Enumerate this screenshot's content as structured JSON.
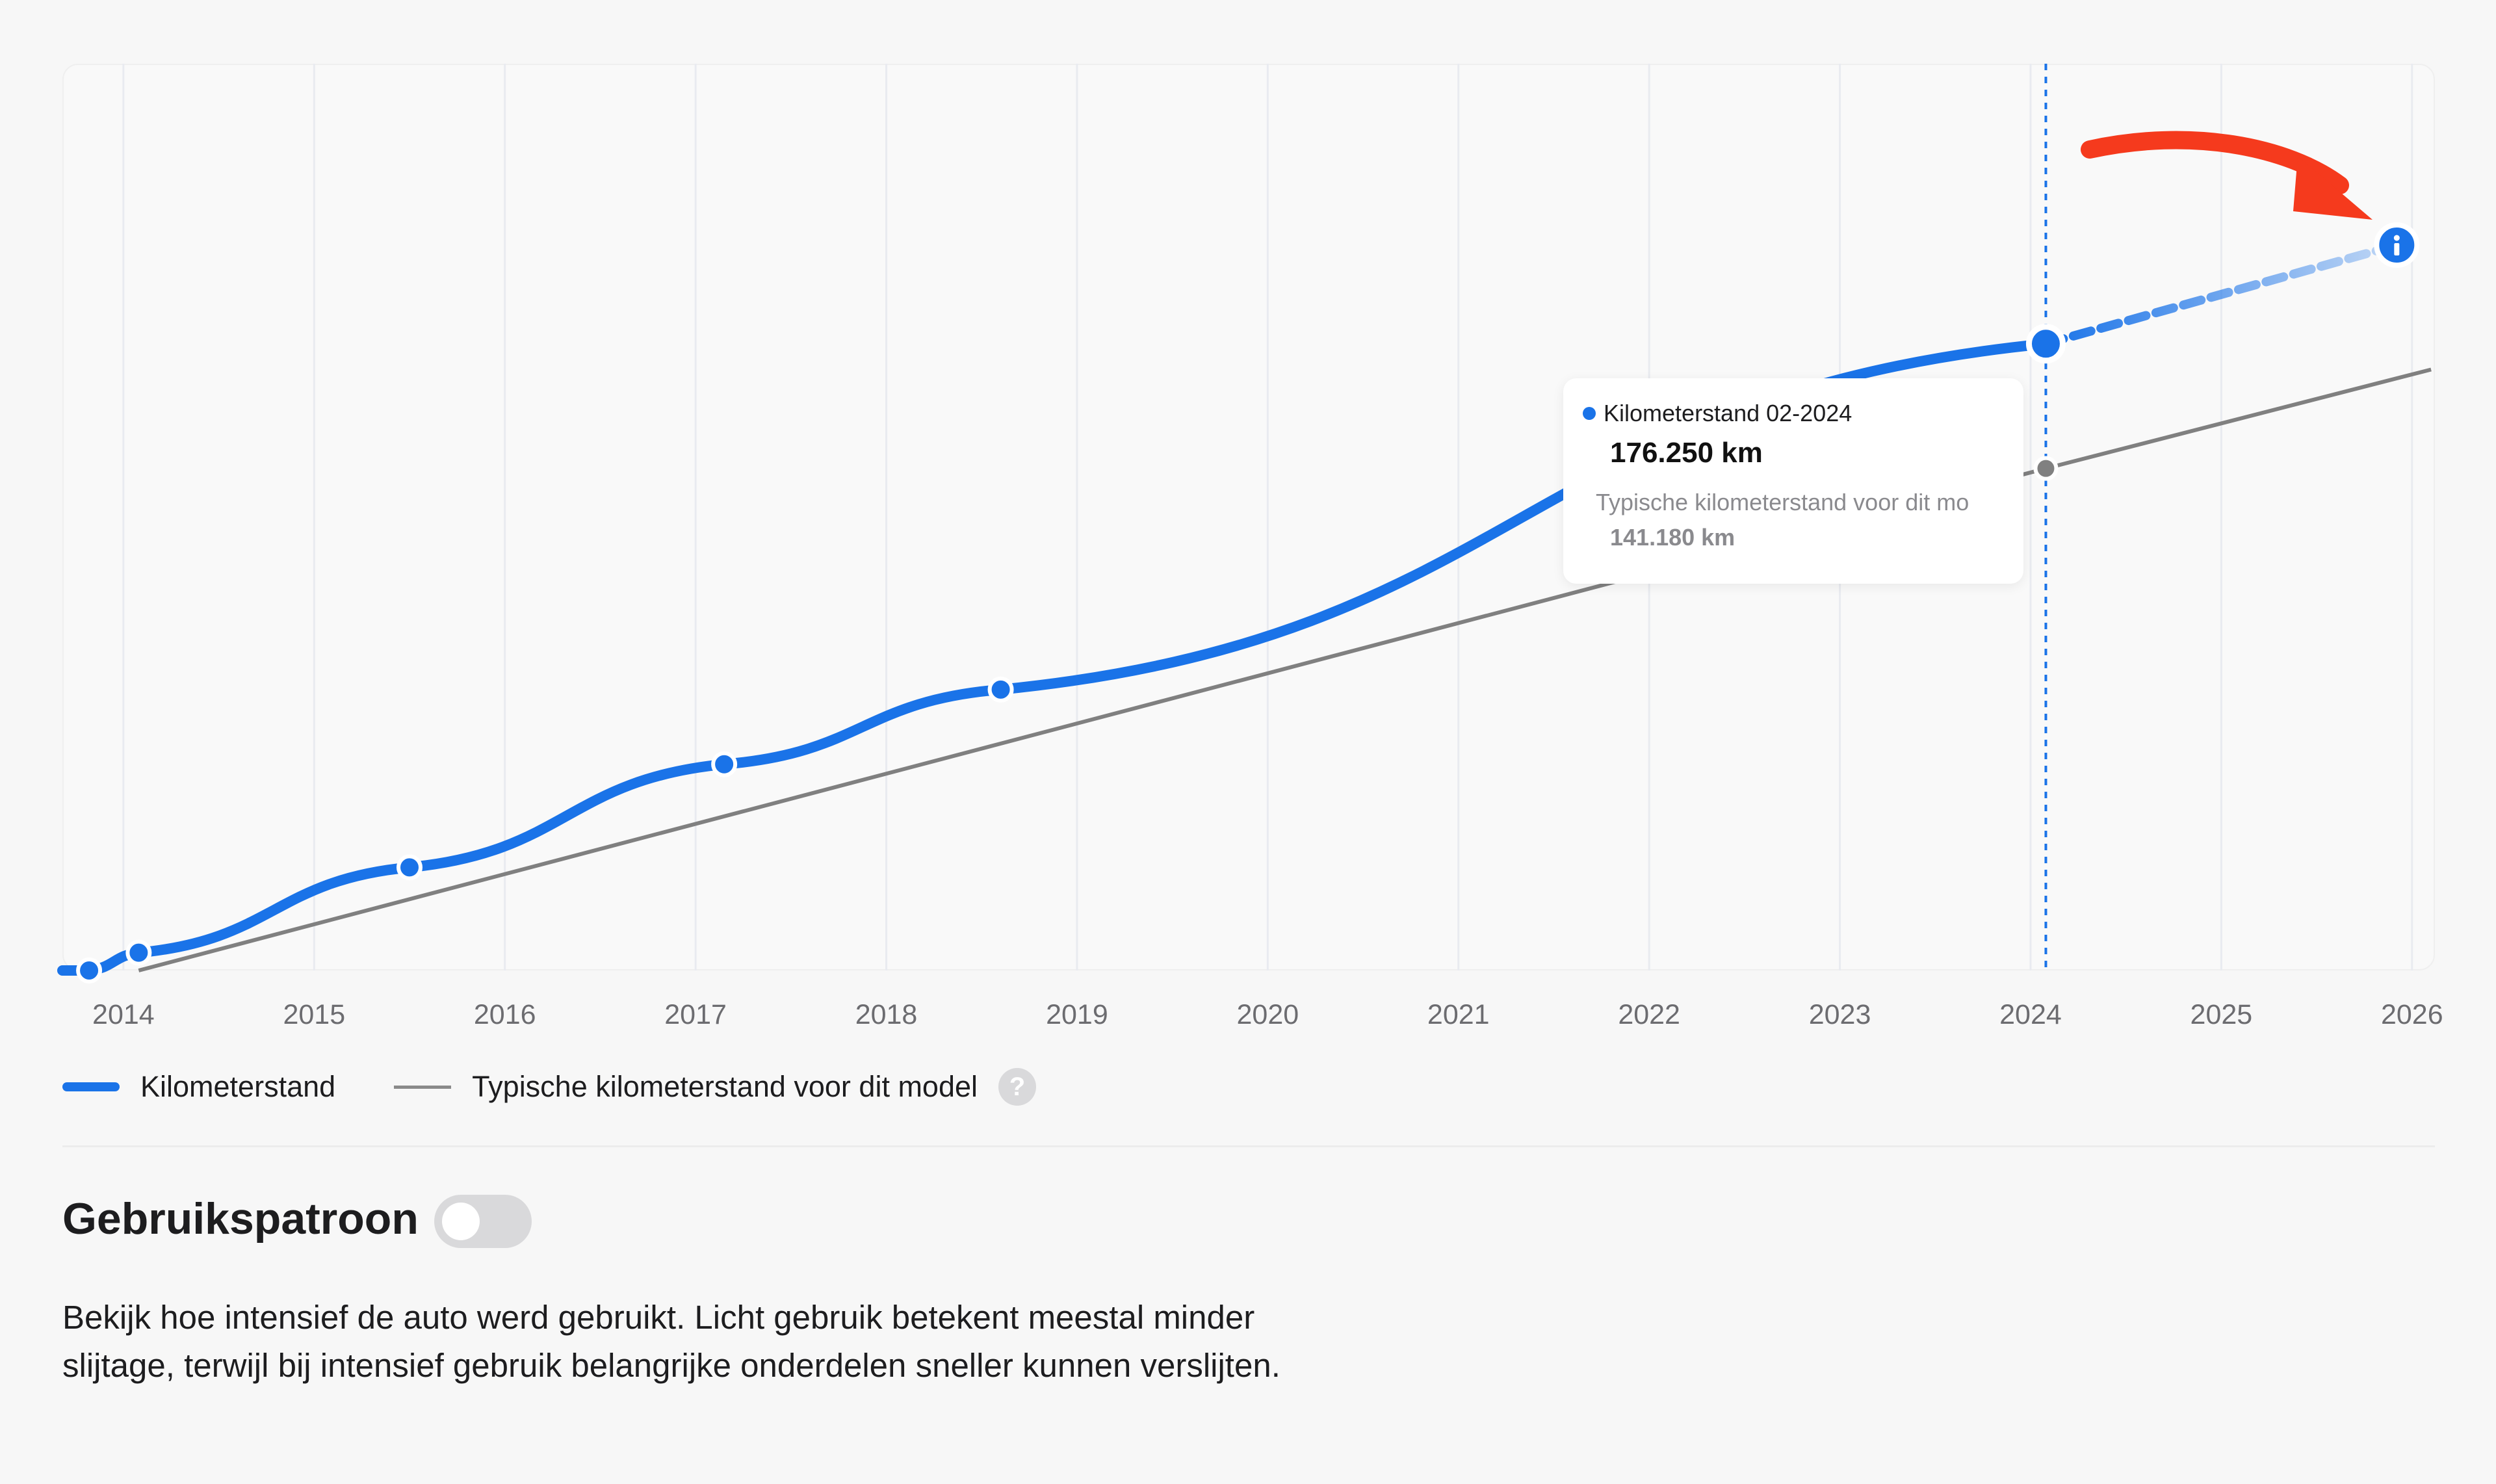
{
  "chart_data": {
    "type": "line",
    "x_ticks": [
      "2014",
      "2015",
      "2016",
      "2017",
      "2018",
      "2019",
      "2020",
      "2021",
      "2022",
      "2023",
      "2024",
      "2025",
      "2026"
    ],
    "series": [
      {
        "name": "Kilometerstand",
        "color": "#1a73e8",
        "points": [
          {
            "x": 2013.82,
            "y": 0
          },
          {
            "x": 2014.08,
            "y": 5000
          },
          {
            "x": 2015.5,
            "y": 29000
          },
          {
            "x": 2017.15,
            "y": 58000
          },
          {
            "x": 2018.6,
            "y": 79000
          },
          {
            "x": 2024.08,
            "y": 176250
          }
        ],
        "projection": {
          "x": 2025.92,
          "y": 204000
        }
      },
      {
        "name": "Typische kilometerstand voor dit model",
        "color": "#808080",
        "points": [
          {
            "x": 2014.08,
            "y": 0
          },
          {
            "x": 2024.08,
            "y": 141180
          },
          {
            "x": 2026.1,
            "y": 169000
          }
        ]
      }
    ],
    "marker_x": 2024.08,
    "ylim": [
      0,
      255000
    ],
    "xlim": [
      2013.68,
      2026.12
    ],
    "grid": true
  },
  "tooltip": {
    "title": "Kilometerstand 02-2024",
    "value": "176.250 km",
    "typical_label": "Typische kilometerstand voor dit mo",
    "typical_value": "141.180 km"
  },
  "legend": {
    "mileage": "Kilometerstand",
    "typical": "Typische kilometerstand voor dit model",
    "help": "?"
  },
  "section": {
    "title": "Gebruikspatroon",
    "toggle_on": false,
    "description": "Bekijk hoe intensief de auto werd gebruikt. Licht gebruik betekent meestal minder slijtage, terwijl bij intensief gebruik belangrijke onderdelen sneller kunnen verslijten."
  },
  "info_icon": "info-icon",
  "annotation": "red-arrow-icon",
  "colors": {
    "accent": "#1a73e8",
    "typical": "#808080",
    "arrow": "#f53a1d"
  }
}
